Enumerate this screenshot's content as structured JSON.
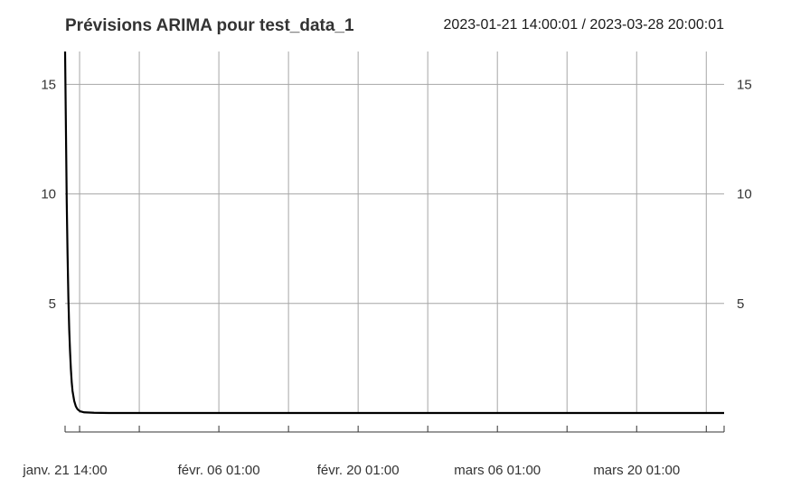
{
  "chart_data": {
    "type": "line",
    "title": "Prévisions ARIMA pour test_data_1",
    "date_range": "2023-01-21 14:00:01 / 2023-03-28 20:00:01",
    "x_start": "2023-01-21 14:00:01",
    "x_end": "2023-03-28 20:00:01",
    "x_ticks": [
      {
        "time": "2023-01-21 14:00:01",
        "label": "janv. 21 14:00"
      },
      {
        "time": "2023-01-23 01:00:00",
        "label": ""
      },
      {
        "time": "2023-01-29 01:00:00",
        "label": ""
      },
      {
        "time": "2023-02-06 01:00:00",
        "label": "févr. 06 01:00"
      },
      {
        "time": "2023-02-13 01:00:00",
        "label": ""
      },
      {
        "time": "2023-02-20 01:00:00",
        "label": "févr. 20 01:00"
      },
      {
        "time": "2023-02-27 01:00:00",
        "label": ""
      },
      {
        "time": "2023-03-06 01:00:00",
        "label": "mars 06 01:00"
      },
      {
        "time": "2023-03-13 01:00:00",
        "label": ""
      },
      {
        "time": "2023-03-20 01:00:00",
        "label": "mars 20 01:00"
      },
      {
        "time": "2023-03-27 01:00:00",
        "label": ""
      },
      {
        "time": "2023-03-28 20:00:01",
        "label": ""
      }
    ],
    "ylim": [
      0,
      16.5
    ],
    "y_ticks": [
      5,
      10,
      15
    ],
    "grid": true,
    "series": [
      {
        "color": "#000000",
        "points": [
          [
            "2023-01-21 14:00:01",
            16.5
          ],
          [
            "2023-01-21 16:00:00",
            13.0
          ],
          [
            "2023-01-21 18:00:00",
            9.6
          ],
          [
            "2023-01-21 20:00:00",
            7.2
          ],
          [
            "2023-01-21 22:00:00",
            5.2
          ],
          [
            "2023-01-22 00:00:00",
            3.8
          ],
          [
            "2023-01-22 02:00:00",
            2.8
          ],
          [
            "2023-01-22 04:00:00",
            2.0
          ],
          [
            "2023-01-22 06:00:00",
            1.4
          ],
          [
            "2023-01-22 08:00:00",
            1.0
          ],
          [
            "2023-01-22 12:00:00",
            0.55
          ],
          [
            "2023-01-22 16:00:00",
            0.3
          ],
          [
            "2023-01-22 20:00:00",
            0.17
          ],
          [
            "2023-01-23 02:00:00",
            0.08
          ],
          [
            "2023-01-23 12:00:00",
            0.03
          ],
          [
            "2023-01-24 12:00:00",
            0.01
          ],
          [
            "2023-01-26 00:00:00",
            0.0
          ],
          [
            "2023-03-28 20:00:01",
            0.0
          ]
        ]
      }
    ]
  }
}
